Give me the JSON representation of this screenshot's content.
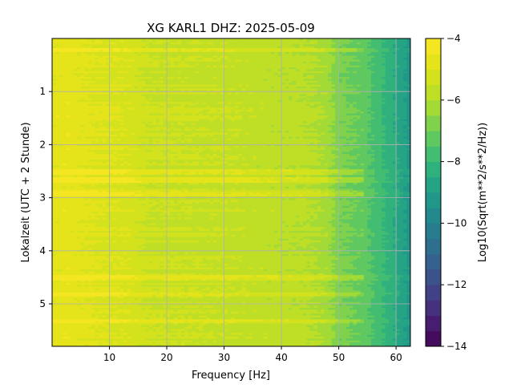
{
  "chart_data": {
    "type": "heatmap",
    "title": "XG KARL1  DHZ: 2025-05-09",
    "xlabel": "Frequency [Hz]",
    "ylabel": "Lokalzeit (UTC + 2 Stunde)",
    "xlim": [
      0,
      62.5
    ],
    "ylim": [
      5.8,
      0
    ],
    "x_ticks": [
      10,
      20,
      30,
      40,
      50,
      60
    ],
    "y_ticks": [
      1,
      2,
      3,
      4,
      5
    ],
    "grid": true,
    "colorbar": {
      "label": "Log10(Sqrt(m**2/s**2/Hz))",
      "range": [
        -14,
        -4
      ],
      "ticks": [
        -14,
        -12,
        -10,
        -8,
        -6,
        -4
      ],
      "colormap": "viridis",
      "levels": 20
    },
    "spectrum_profile": {
      "frequency_hz": [
        0,
        3,
        8,
        13,
        17,
        20,
        30,
        40,
        45,
        48,
        50,
        54,
        57,
        60,
        62.5
      ],
      "log10_amplitude": [
        -4.8,
        -4.7,
        -5.0,
        -5.1,
        -5.5,
        -5.5,
        -5.6,
        -5.8,
        -5.9,
        -6.2,
        -6.8,
        -7.2,
        -7.8,
        -8.5,
        -9.2
      ]
    },
    "bright_bands_hours": [
      0.2,
      2.5,
      2.65,
      2.9,
      4.5,
      4.8,
      5.3
    ]
  }
}
